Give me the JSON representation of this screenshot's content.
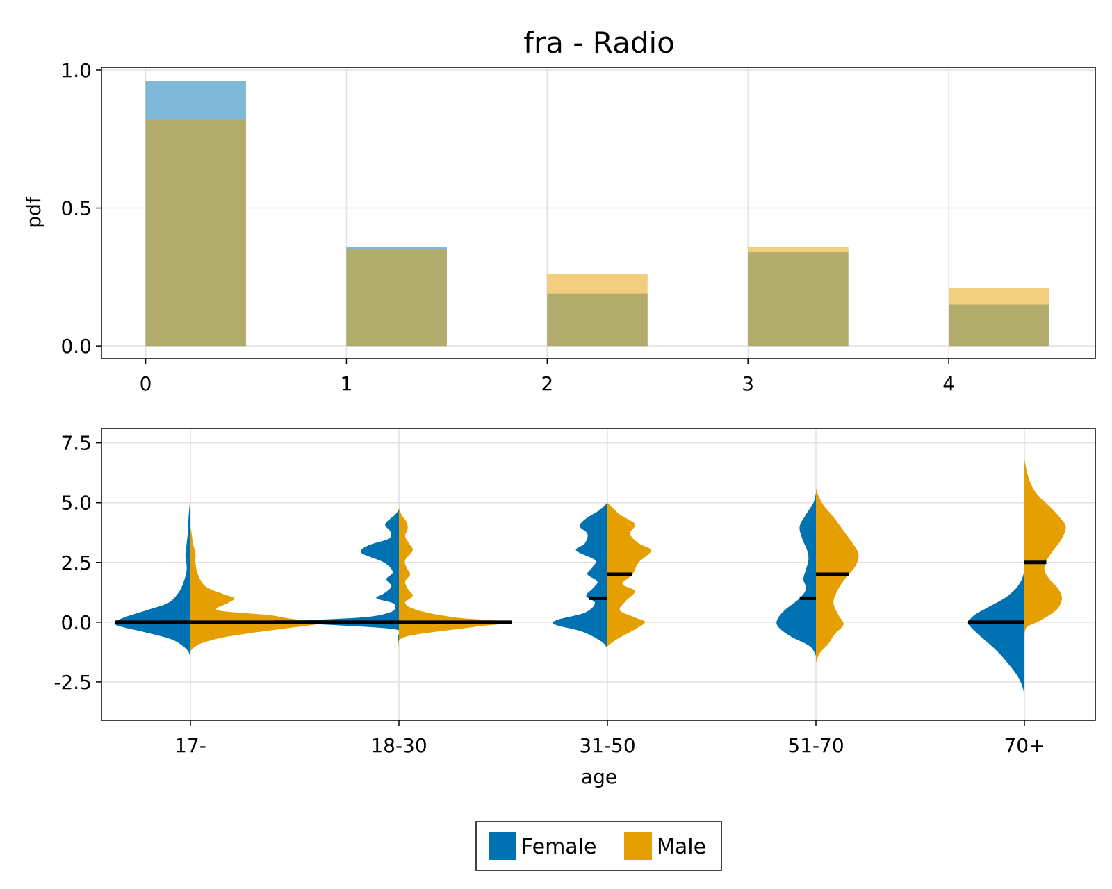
{
  "title": "fra - Radio",
  "colors": {
    "female": "#0072b2",
    "male": "#e69f00",
    "median": "#000000",
    "grid": "#e1e1e1"
  },
  "legend": {
    "female_label": "Female",
    "male_label": "Male"
  },
  "chart_data": [
    {
      "type": "bar",
      "title": "fra - Radio",
      "xlabel": "",
      "ylabel": "pdf",
      "xlim": [
        -0.22,
        4.73
      ],
      "ylim": [
        -0.045,
        1.01
      ],
      "x_ticks": [
        "0",
        "1",
        "2",
        "3",
        "4"
      ],
      "y_ticks": [
        "0.0",
        "0.5",
        "1.0"
      ],
      "bin_width": 0.5,
      "categories": [
        0,
        1,
        2,
        3,
        4
      ],
      "series": [
        {
          "name": "Female",
          "values": [
            0.96,
            0.36,
            0.19,
            0.34,
            0.15
          ]
        },
        {
          "name": "Male",
          "values": [
            0.82,
            0.35,
            0.26,
            0.36,
            0.21
          ]
        }
      ],
      "grid": true
    },
    {
      "type": "violin",
      "title": "",
      "xlabel": "age",
      "ylabel": "",
      "ylim": [
        -4.1,
        8.1
      ],
      "y_ticks": [
        "-2.5",
        "0.0",
        "2.5",
        "5.0",
        "7.5"
      ],
      "categories": [
        "17-",
        "18-30",
        "31-50",
        "51-70",
        "70+"
      ],
      "grid": true,
      "series": [
        {
          "name": "Female",
          "side": "left",
          "medians": [
            0,
            0,
            1,
            1,
            0
          ],
          "densities": [
            [
              [
                -1.7,
                0
              ],
              [
                -1.3,
                0.01
              ],
              [
                -1.0,
                0.06
              ],
              [
                -0.7,
                0.16
              ],
              [
                -0.4,
                0.38
              ],
              [
                -0.15,
                0.58
              ],
              [
                0,
                0.6
              ],
              [
                0.2,
                0.53
              ],
              [
                0.5,
                0.35
              ],
              [
                0.8,
                0.18
              ],
              [
                1.2,
                0.1
              ],
              [
                1.6,
                0.06
              ],
              [
                2.2,
                0.03
              ],
              [
                2.8,
                0.04
              ],
              [
                3.3,
                0.03
              ],
              [
                3.8,
                0.02
              ],
              [
                4.4,
                0.015
              ],
              [
                5.0,
                0.005
              ],
              [
                5.3,
                0
              ]
            ],
            [
              [
                -1.0,
                0
              ],
              [
                -0.6,
                0.01
              ],
              [
                -0.3,
                0.03
              ],
              [
                -0.1,
                0.6
              ],
              [
                0,
                1.0
              ],
              [
                0.2,
                0.3
              ],
              [
                0.4,
                0.08
              ],
              [
                0.6,
                0.03
              ],
              [
                0.8,
                0.05
              ],
              [
                1.0,
                0.18
              ],
              [
                1.2,
                0.12
              ],
              [
                1.5,
                0.06
              ],
              [
                1.8,
                0.1
              ],
              [
                2.1,
                0.05
              ],
              [
                2.5,
                0.12
              ],
              [
                2.9,
                0.3
              ],
              [
                3.2,
                0.25
              ],
              [
                3.5,
                0.08
              ],
              [
                3.8,
                0.07
              ],
              [
                4.1,
                0.11
              ],
              [
                4.5,
                0.03
              ],
              [
                4.7,
                0
              ]
            ],
            [
              [
                -1.1,
                0
              ],
              [
                -0.8,
                0.05
              ],
              [
                -0.4,
                0.2
              ],
              [
                -0.1,
                0.42
              ],
              [
                0.1,
                0.4
              ],
              [
                0.4,
                0.18
              ],
              [
                0.8,
                0.1
              ],
              [
                1.1,
                0.17
              ],
              [
                1.4,
                0.12
              ],
              [
                1.7,
                0.08
              ],
              [
                2.0,
                0.16
              ],
              [
                2.3,
                0.12
              ],
              [
                2.6,
                0.1
              ],
              [
                3.0,
                0.25
              ],
              [
                3.3,
                0.18
              ],
              [
                3.7,
                0.16
              ],
              [
                4.0,
                0.22
              ],
              [
                4.3,
                0.18
              ],
              [
                4.7,
                0.06
              ],
              [
                5.0,
                0
              ]
            ],
            [
              [
                -1.4,
                0
              ],
              [
                -1.0,
                0.05
              ],
              [
                -0.6,
                0.2
              ],
              [
                -0.2,
                0.3
              ],
              [
                0.1,
                0.31
              ],
              [
                0.5,
                0.25
              ],
              [
                1.0,
                0.13
              ],
              [
                1.4,
                0.08
              ],
              [
                1.8,
                0.1
              ],
              [
                2.2,
                0.08
              ],
              [
                2.6,
                0.06
              ],
              [
                3.0,
                0.07
              ],
              [
                3.5,
                0.11
              ],
              [
                4.0,
                0.13
              ],
              [
                4.5,
                0.08
              ],
              [
                5.0,
                0.02
              ],
              [
                5.4,
                0
              ]
            ],
            [
              [
                -3.3,
                0
              ],
              [
                -2.8,
                0.01
              ],
              [
                -2.3,
                0.05
              ],
              [
                -1.8,
                0.12
              ],
              [
                -1.2,
                0.22
              ],
              [
                -0.6,
                0.35
              ],
              [
                -0.2,
                0.43
              ],
              [
                0,
                0.45
              ],
              [
                0.3,
                0.4
              ],
              [
                0.6,
                0.3
              ],
              [
                1.0,
                0.16
              ],
              [
                1.4,
                0.07
              ],
              [
                1.8,
                0.02
              ],
              [
                2.2,
                0
              ]
            ]
          ]
        },
        {
          "name": "Male",
          "side": "right",
          "medians": [
            0,
            0,
            2,
            2,
            2.5
          ],
          "densities": [
            [
              [
                -1.2,
                0
              ],
              [
                -0.9,
                0.08
              ],
              [
                -0.6,
                0.3
              ],
              [
                -0.3,
                0.7
              ],
              [
                -0.1,
                1.0
              ],
              [
                0,
                1.02
              ],
              [
                0.15,
                0.8
              ],
              [
                0.3,
                0.62
              ],
              [
                0.5,
                0.22
              ],
              [
                0.8,
                0.3
              ],
              [
                1.0,
                0.35
              ],
              [
                1.2,
                0.25
              ],
              [
                1.5,
                0.12
              ],
              [
                2.0,
                0.06
              ],
              [
                2.5,
                0.04
              ],
              [
                2.9,
                0.04
              ],
              [
                3.3,
                0.02
              ],
              [
                3.7,
                0.01
              ],
              [
                4.0,
                0
              ]
            ],
            [
              [
                -1.0,
                0
              ],
              [
                -0.6,
                0.06
              ],
              [
                -0.2,
                0.6
              ],
              [
                0,
                0.9
              ],
              [
                0.2,
                0.45
              ],
              [
                0.5,
                0.15
              ],
              [
                0.8,
                0.05
              ],
              [
                1.1,
                0.11
              ],
              [
                1.4,
                0.07
              ],
              [
                1.7,
                0.05
              ],
              [
                2.0,
                0.09
              ],
              [
                2.3,
                0.06
              ],
              [
                2.6,
                0.05
              ],
              [
                3.0,
                0.11
              ],
              [
                3.3,
                0.08
              ],
              [
                3.6,
                0.05
              ],
              [
                3.9,
                0.07
              ],
              [
                4.2,
                0.06
              ],
              [
                4.5,
                0.02
              ],
              [
                4.8,
                0
              ]
            ],
            [
              [
                -1.0,
                0
              ],
              [
                -0.7,
                0.08
              ],
              [
                -0.3,
                0.22
              ],
              [
                0,
                0.3
              ],
              [
                0.2,
                0.22
              ],
              [
                0.5,
                0.1
              ],
              [
                0.9,
                0.15
              ],
              [
                1.3,
                0.22
              ],
              [
                1.6,
                0.12
              ],
              [
                2.0,
                0.2
              ],
              [
                2.5,
                0.25
              ],
              [
                3.0,
                0.35
              ],
              [
                3.3,
                0.25
              ],
              [
                3.7,
                0.18
              ],
              [
                4.1,
                0.22
              ],
              [
                4.5,
                0.1
              ],
              [
                4.8,
                0.04
              ],
              [
                5.0,
                0
              ]
            ],
            [
              [
                -1.7,
                0
              ],
              [
                -1.3,
                0.03
              ],
              [
                -0.9,
                0.1
              ],
              [
                -0.5,
                0.15
              ],
              [
                -0.1,
                0.22
              ],
              [
                0.3,
                0.18
              ],
              [
                0.8,
                0.14
              ],
              [
                1.3,
                0.17
              ],
              [
                1.8,
                0.23
              ],
              [
                2.3,
                0.31
              ],
              [
                2.7,
                0.34
              ],
              [
                3.0,
                0.33
              ],
              [
                3.4,
                0.28
              ],
              [
                3.9,
                0.21
              ],
              [
                4.4,
                0.14
              ],
              [
                4.9,
                0.06
              ],
              [
                5.3,
                0.02
              ],
              [
                5.6,
                0
              ]
            ],
            [
              [
                -0.5,
                0
              ],
              [
                -0.2,
                0.02
              ],
              [
                0,
                0.1
              ],
              [
                0.3,
                0.2
              ],
              [
                0.6,
                0.27
              ],
              [
                1.0,
                0.3
              ],
              [
                1.4,
                0.27
              ],
              [
                1.8,
                0.2
              ],
              [
                2.2,
                0.16
              ],
              [
                2.6,
                0.18
              ],
              [
                3.0,
                0.23
              ],
              [
                3.5,
                0.3
              ],
              [
                4.0,
                0.33
              ],
              [
                4.4,
                0.28
              ],
              [
                4.8,
                0.21
              ],
              [
                5.3,
                0.11
              ],
              [
                5.8,
                0.05
              ],
              [
                6.3,
                0.02
              ],
              [
                6.8,
                0
              ]
            ]
          ]
        }
      ]
    }
  ]
}
